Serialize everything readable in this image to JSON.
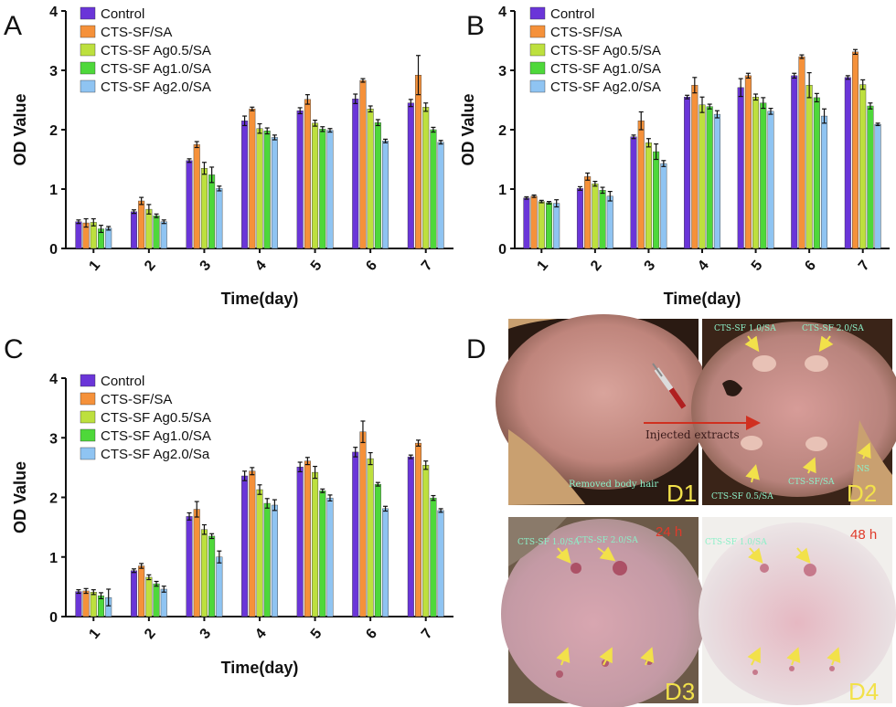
{
  "chart_data": [
    {
      "panel": "A",
      "type": "bar",
      "xlabel": "Time(day)",
      "ylabel": "OD Value",
      "ylim": [
        0,
        4
      ],
      "yticks": [
        0,
        1,
        2,
        3,
        4
      ],
      "categories": [
        "1",
        "2",
        "3",
        "4",
        "5",
        "6",
        "7"
      ],
      "legend_position": "top-left",
      "series": [
        {
          "name": "Control",
          "color": "#6a35d8",
          "values": [
            0.45,
            0.62,
            1.48,
            2.15,
            2.32,
            2.52,
            2.45
          ],
          "errors": [
            0.03,
            0.03,
            0.03,
            0.08,
            0.05,
            0.08,
            0.06
          ]
        },
        {
          "name": "CTS-SF/SA",
          "color": "#f5913a",
          "values": [
            0.43,
            0.8,
            1.75,
            2.35,
            2.51,
            2.83,
            2.92
          ],
          "errors": [
            0.07,
            0.06,
            0.05,
            0.03,
            0.08,
            0.03,
            0.33
          ]
        },
        {
          "name": "CTS-SF Ag0.5/SA",
          "color": "#bde03e",
          "values": [
            0.44,
            0.66,
            1.35,
            2.02,
            2.11,
            2.35,
            2.38
          ],
          "errors": [
            0.06,
            0.08,
            0.1,
            0.08,
            0.05,
            0.05,
            0.07
          ]
        },
        {
          "name": "CTS-SF Ag1.0/SA",
          "color": "#4ed83a",
          "values": [
            0.33,
            0.55,
            1.24,
            1.98,
            2.01,
            2.12,
            2.0
          ],
          "errors": [
            0.06,
            0.03,
            0.13,
            0.05,
            0.04,
            0.05,
            0.04
          ]
        },
        {
          "name": "CTS-SF Ag2.0/SA",
          "color": "#8fc4f2",
          "values": [
            0.34,
            0.45,
            1.01,
            1.87,
            1.99,
            1.81,
            1.79
          ],
          "errors": [
            0.03,
            0.03,
            0.04,
            0.04,
            0.03,
            0.03,
            0.03
          ]
        }
      ]
    },
    {
      "panel": "B",
      "type": "bar",
      "xlabel": "Time(day)",
      "ylabel": "OD Value",
      "ylim": [
        0,
        4
      ],
      "yticks": [
        0,
        1,
        2,
        3,
        4
      ],
      "categories": [
        "1",
        "2",
        "3",
        "4",
        "5",
        "6",
        "7"
      ],
      "legend_position": "top-left",
      "series": [
        {
          "name": "Control",
          "color": "#6a35d8",
          "values": [
            0.85,
            1.01,
            1.88,
            2.55,
            2.71,
            2.91,
            2.88
          ],
          "errors": [
            0.02,
            0.03,
            0.03,
            0.03,
            0.15,
            0.04,
            0.03
          ]
        },
        {
          "name": "CTS-SF/SA",
          "color": "#f5913a",
          "values": [
            0.88,
            1.21,
            2.15,
            2.75,
            2.91,
            3.23,
            3.31
          ],
          "errors": [
            0.02,
            0.06,
            0.15,
            0.13,
            0.04,
            0.03,
            0.04
          ]
        },
        {
          "name": "CTS-SF Ag0.5/SA",
          "color": "#bde03e",
          "values": [
            0.79,
            1.09,
            1.78,
            2.42,
            2.55,
            2.75,
            2.76
          ],
          "errors": [
            0.02,
            0.04,
            0.07,
            0.13,
            0.05,
            0.21,
            0.08
          ]
        },
        {
          "name": "CTS-SF Ag1.0/SA",
          "color": "#4ed83a",
          "values": [
            0.77,
            0.98,
            1.63,
            2.39,
            2.45,
            2.54,
            2.4
          ],
          "errors": [
            0.02,
            0.05,
            0.13,
            0.04,
            0.09,
            0.07,
            0.05
          ]
        },
        {
          "name": "CTS-SF Ag2.0/SA",
          "color": "#8fc4f2",
          "values": [
            0.76,
            0.88,
            1.43,
            2.26,
            2.31,
            2.23,
            2.09
          ],
          "errors": [
            0.06,
            0.08,
            0.05,
            0.06,
            0.05,
            0.12,
            0.02
          ]
        }
      ]
    },
    {
      "panel": "C",
      "type": "bar",
      "xlabel": "Time(day)",
      "ylabel": "OD Value",
      "ylim": [
        0,
        4
      ],
      "yticks": [
        0,
        1,
        2,
        3,
        4
      ],
      "categories": [
        "1",
        "2",
        "3",
        "4",
        "5",
        "6",
        "7"
      ],
      "legend_position": "top-left",
      "series": [
        {
          "name": "Control",
          "color": "#6a35d8",
          "values": [
            0.42,
            0.77,
            1.68,
            2.36,
            2.51,
            2.76,
            2.68
          ],
          "errors": [
            0.03,
            0.03,
            0.06,
            0.08,
            0.08,
            0.08,
            0.03
          ]
        },
        {
          "name": "CTS-SF/SA",
          "color": "#f5913a",
          "values": [
            0.43,
            0.85,
            1.8,
            2.44,
            2.61,
            3.1,
            2.91
          ],
          "errors": [
            0.04,
            0.04,
            0.13,
            0.06,
            0.06,
            0.18,
            0.05
          ]
        },
        {
          "name": "CTS-SF Ag0.5/SA",
          "color": "#bde03e",
          "values": [
            0.41,
            0.66,
            1.46,
            2.13,
            2.42,
            2.65,
            2.54
          ],
          "errors": [
            0.04,
            0.04,
            0.08,
            0.08,
            0.1,
            0.1,
            0.07
          ]
        },
        {
          "name": "CTS-SF Ag1.0/SA",
          "color": "#4ed83a",
          "values": [
            0.35,
            0.55,
            1.35,
            1.9,
            2.11,
            2.22,
            1.99
          ],
          "errors": [
            0.05,
            0.04,
            0.04,
            0.08,
            0.03,
            0.03,
            0.04
          ]
        },
        {
          "name": "CTS-SF Ag2.0/Sa",
          "color": "#8fc4f2",
          "values": [
            0.32,
            0.46,
            1.0,
            1.87,
            1.99,
            1.81,
            1.78
          ],
          "errors": [
            0.14,
            0.05,
            0.1,
            0.09,
            0.05,
            0.04,
            0.03
          ]
        }
      ]
    }
  ],
  "panel_labels": {
    "a": "A",
    "b": "B",
    "c": "C",
    "d": "D"
  },
  "photos": {
    "d1": {
      "label": "D1",
      "caption_hair": "Removed body hair",
      "injected": "Injected extracts"
    },
    "d2": {
      "label": "D2",
      "c10": "CTS-SF 1.0/SA",
      "c20": "CTS-SF 2.0/SA",
      "c05": "CTS-SF 0.5/SA",
      "sfsa": "CTS-SF/SA",
      "ns": "NS"
    },
    "d3": {
      "label": "D3",
      "time": "24 h",
      "c10": "CTS-SF 1.0/SA",
      "c20": "CTS-SF 2.0/SA"
    },
    "d4": {
      "label": "D4",
      "time": "48 h",
      "c10": "CTS-SF 1.0/SA"
    }
  }
}
